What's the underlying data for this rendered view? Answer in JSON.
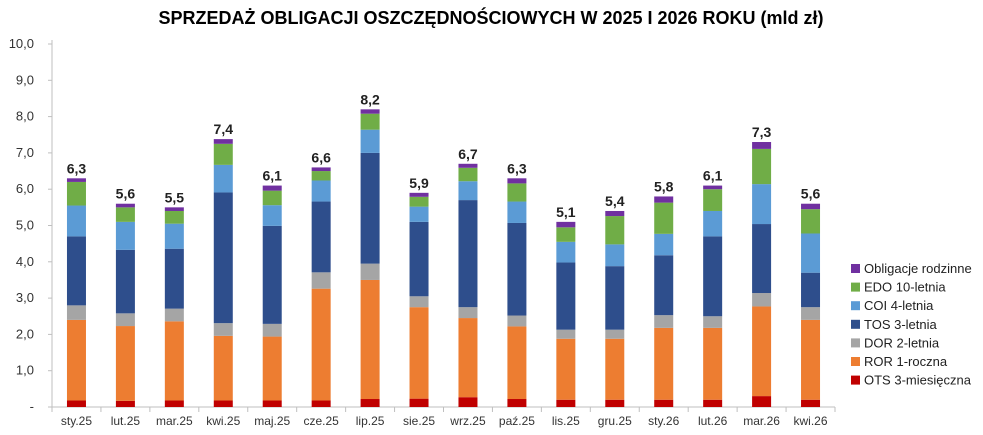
{
  "chart_data": {
    "type": "bar",
    "stacked": true,
    "title": "SPRZEDAŻ OBLIGACJI OSZCZĘDNOŚCIOWYCH W 2025 I 2026 ROKU (mld zł)",
    "xlabel": "",
    "ylabel": "",
    "ylim": [
      0,
      10
    ],
    "y_ticks": [
      "-",
      "1,0",
      "2,0",
      "3,0",
      "4,0",
      "5,0",
      "6,0",
      "7,0",
      "8,0",
      "9,0",
      "10,0"
    ],
    "grid": false,
    "legend_position": "right",
    "categories": [
      "sty.25",
      "lut.25",
      "mar.25",
      "kwi.25",
      "maj.25",
      "cze.25",
      "lip.25",
      "sie.25",
      "wrz.25",
      "paź.25",
      "lis.25",
      "gru.25",
      "sty.26",
      "lut.26",
      "mar.26",
      "kwi.26"
    ],
    "totals": [
      "6,3",
      "5,6",
      "5,5",
      "7,4",
      "6,1",
      "6,6",
      "8,2",
      "5,9",
      "6,7",
      "6,3",
      "5,1",
      "5,4",
      "5,8",
      "6,1",
      "7,3",
      "5,6"
    ],
    "series": [
      {
        "name": "OTS 3-miesięczna",
        "color": "#c00000",
        "values": [
          0.18,
          0.17,
          0.18,
          0.18,
          0.18,
          0.18,
          0.22,
          0.23,
          0.27,
          0.22,
          0.2,
          0.2,
          0.2,
          0.2,
          0.3,
          0.2
        ]
      },
      {
        "name": "ROR 1-roczna",
        "color": "#ed7d31",
        "values": [
          2.22,
          2.06,
          2.18,
          1.78,
          1.76,
          3.08,
          3.28,
          2.52,
          2.18,
          2.0,
          1.68,
          1.68,
          1.98,
          1.98,
          2.47,
          2.2
        ]
      },
      {
        "name": "DOR 2-letnia",
        "color": "#a5a5a5",
        "values": [
          0.4,
          0.35,
          0.35,
          0.35,
          0.35,
          0.45,
          0.45,
          0.3,
          0.3,
          0.3,
          0.25,
          0.25,
          0.35,
          0.32,
          0.37,
          0.35
        ]
      },
      {
        "name": "TOS 3-letnia",
        "color": "#2e4e8c",
        "values": [
          1.9,
          1.75,
          1.65,
          3.6,
          2.7,
          1.95,
          3.05,
          2.05,
          2.95,
          2.55,
          1.85,
          1.75,
          1.65,
          2.2,
          1.9,
          0.95
        ]
      },
      {
        "name": "COI 4-letnia",
        "color": "#5b9bd5",
        "values": [
          0.85,
          0.77,
          0.69,
          0.76,
          0.57,
          0.58,
          0.64,
          0.42,
          0.52,
          0.59,
          0.57,
          0.6,
          0.59,
          0.7,
          1.1,
          1.08
        ]
      },
      {
        "name": "EDO 10-letnia",
        "color": "#70ad47",
        "values": [
          0.65,
          0.4,
          0.35,
          0.58,
          0.4,
          0.26,
          0.44,
          0.27,
          0.37,
          0.5,
          0.4,
          0.78,
          0.86,
          0.6,
          0.97,
          0.67
        ]
      },
      {
        "name": "Obligacje rodzinne",
        "color": "#7030a0",
        "values": [
          0.1,
          0.1,
          0.1,
          0.13,
          0.14,
          0.1,
          0.12,
          0.11,
          0.11,
          0.14,
          0.15,
          0.14,
          0.17,
          0.1,
          0.19,
          0.15
        ]
      }
    ]
  }
}
